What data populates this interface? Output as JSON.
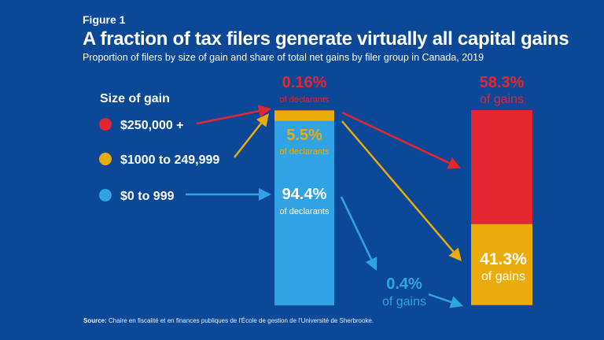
{
  "figure_label": "Figure 1",
  "title": "A fraction of tax filers generate virtually all capital gains",
  "subtitle": "Proportion of filers by size of gain and share of total net gains by filer group in Canada, 2019",
  "source_label": "Source:",
  "source_text": "Chaire en fiscalité et en finances publiques de l'École de gestion de l'Université de Sherbrooke.",
  "chart_data": {
    "type": "bar",
    "stacked": true,
    "legend_title": "Size of gain",
    "legend_placement": "left",
    "categories": [
      "declarants",
      "gains"
    ],
    "series": [
      {
        "name": "$0 to 999",
        "color": "#2fa3e6",
        "values": [
          94.4,
          0.4
        ],
        "labels": [
          "94.4%",
          "0.4%"
        ],
        "sublabels": [
          "of declarants",
          "of gains"
        ]
      },
      {
        "name": "$1000 to 249,999",
        "color": "#eaab0c",
        "values": [
          5.5,
          41.3
        ],
        "labels": [
          "5.5%",
          "41.3%"
        ],
        "sublabels": [
          "of declarants",
          "of gains"
        ]
      },
      {
        "name": "$250,000 +",
        "color": "#e3262f",
        "values": [
          0.16,
          58.3
        ],
        "labels": [
          "0.16%",
          "58.3%"
        ],
        "sublabels": [
          "of declarants",
          "of gains"
        ]
      }
    ],
    "ylim": [
      0,
      100
    ]
  },
  "colors": {
    "background": "#0b4898",
    "red": "#e3262f",
    "yellow": "#eaab0c",
    "blue": "#2fa3e6"
  }
}
